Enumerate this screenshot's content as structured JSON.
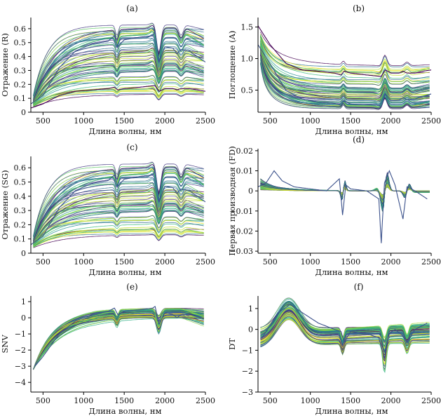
{
  "figure": {
    "palette": [
      "#440154",
      "#472c7a",
      "#3b518b",
      "#2c718e",
      "#21908d",
      "#27ad81",
      "#5cc863",
      "#aadc32",
      "#fde725",
      "#c2df23",
      "#86d549",
      "#35b779",
      "#31688e",
      "#443983"
    ]
  },
  "chart_data": [
    {
      "id": "a",
      "type": "line",
      "title": "(a)",
      "xlabel": "Длина волны, нм",
      "ylabel": "Отражение (R)",
      "xlim": [
        350,
        2500
      ],
      "ylim": [
        0,
        0.68
      ],
      "xticks": [
        500,
        1000,
        1500,
        2000,
        2500
      ],
      "yticks": [
        0,
        0.1,
        0.2,
        0.3,
        0.4,
        0.5,
        0.6
      ],
      "xtick_labels": [
        "500",
        "1000",
        "1500",
        "2000",
        "2500"
      ],
      "ytick_labels": [
        "0",
        "0.1",
        "0.2",
        "0.3",
        "0.4",
        "0.5",
        "0.6"
      ],
      "series_count": 70,
      "series": [
        {
          "x": [
            350,
            500,
            700,
            900,
            1100,
            1300,
            1380,
            1420,
            1500,
            1700,
            1850,
            1880,
            1930,
            2000,
            2100,
            2150,
            2200,
            2300,
            2400,
            2500
          ],
          "y": [
            0.06,
            0.12,
            0.32,
            0.44,
            0.49,
            0.51,
            0.55,
            0.47,
            0.52,
            0.54,
            0.55,
            0.58,
            0.36,
            0.47,
            0.46,
            0.42,
            0.45,
            0.44,
            0.4,
            0.36
          ]
        },
        {
          "x": [
            350,
            500,
            700,
            900,
            1100,
            1300,
            1380,
            1420,
            1500,
            1700,
            1850,
            1880,
            1930,
            2000,
            2100,
            2150,
            2200,
            2300,
            2400,
            2500
          ],
          "y": [
            0.03,
            0.06,
            0.12,
            0.15,
            0.16,
            0.17,
            0.18,
            0.16,
            0.17,
            0.18,
            0.19,
            0.19,
            0.15,
            0.17,
            0.17,
            0.16,
            0.17,
            0.17,
            0.16,
            0.15
          ]
        }
      ]
    },
    {
      "id": "b",
      "type": "line",
      "title": "(b)",
      "xlabel": "Длина волны, нм",
      "ylabel": "Поглощение (A)",
      "xlim": [
        350,
        2500
      ],
      "ylim": [
        0.15,
        1.65
      ],
      "xticks": [
        500,
        1000,
        1500,
        2000,
        2500
      ],
      "yticks": [
        0.5,
        1.0,
        1.5
      ],
      "xtick_labels": [
        "500",
        "1000",
        "1500",
        "2000",
        "2500"
      ],
      "ytick_labels": [
        "0.5",
        "1.0",
        "1.5"
      ],
      "series_count": 70,
      "series": [
        {
          "x": [
            350,
            500,
            700,
            900,
            1100,
            1300,
            1380,
            1420,
            1500,
            1700,
            1850,
            1880,
            1930,
            2000,
            2100,
            2150,
            2200,
            2300,
            2400,
            2500
          ],
          "y": [
            1.22,
            0.92,
            0.49,
            0.36,
            0.31,
            0.29,
            0.26,
            0.33,
            0.28,
            0.27,
            0.26,
            0.24,
            0.44,
            0.33,
            0.34,
            0.38,
            0.35,
            0.36,
            0.4,
            0.44
          ]
        },
        {
          "x": [
            350,
            500,
            700,
            900,
            1100,
            1300,
            1380,
            1420,
            1500,
            1700,
            1850,
            1880,
            1930,
            2000,
            2100,
            2150,
            2200,
            2300,
            2400,
            2500
          ],
          "y": [
            1.52,
            1.22,
            0.92,
            0.82,
            0.8,
            0.77,
            0.74,
            0.8,
            0.77,
            0.74,
            0.72,
            0.72,
            0.82,
            0.77,
            0.77,
            0.8,
            0.77,
            0.77,
            0.8,
            0.82
          ]
        }
      ]
    },
    {
      "id": "c",
      "type": "line",
      "title": "(c)",
      "xlabel": "Длина волны, нм",
      "ylabel": "Отражение (SG)",
      "xlim": [
        350,
        2500
      ],
      "ylim": [
        0,
        0.68
      ],
      "xticks": [
        500,
        1000,
        1500,
        2000,
        2500
      ],
      "yticks": [
        0,
        0.1,
        0.2,
        0.3,
        0.4,
        0.5,
        0.6
      ],
      "xtick_labels": [
        "500",
        "1000",
        "1500",
        "2000",
        "2500"
      ],
      "ytick_labels": [
        "0",
        "0.1",
        "0.2",
        "0.3",
        "0.4",
        "0.5",
        "0.6"
      ],
      "series_count": 70,
      "series": [
        {
          "x": [
            350,
            500,
            700,
            900,
            1100,
            1300,
            1380,
            1420,
            1500,
            1700,
            1850,
            1880,
            1930,
            2000,
            2100,
            2150,
            2200,
            2300,
            2400,
            2500
          ],
          "y": [
            0.06,
            0.12,
            0.32,
            0.44,
            0.49,
            0.51,
            0.55,
            0.47,
            0.52,
            0.54,
            0.55,
            0.58,
            0.36,
            0.47,
            0.46,
            0.42,
            0.45,
            0.44,
            0.4,
            0.36
          ]
        }
      ]
    },
    {
      "id": "d",
      "type": "line",
      "title": "(d)",
      "xlabel": "Длина волны, нм",
      "ylabel": "Первая производная (FD)",
      "xlim": [
        350,
        2500
      ],
      "ylim": [
        -0.031,
        0.021
      ],
      "xticks": [
        500,
        1000,
        1500,
        2000,
        2500
      ],
      "yticks": [
        -0.03,
        -0.02,
        -0.01,
        0,
        0.01,
        0.02
      ],
      "xtick_labels": [
        "500",
        "1000",
        "1500",
        "2000",
        "2500"
      ],
      "ytick_labels": [
        "−0.03",
        "−0.02",
        "−0.01",
        "0",
        "0.01",
        "0.02"
      ],
      "series_count": 70,
      "series": [
        {
          "x": [
            350,
            450,
            550,
            650,
            800,
            1000,
            1200,
            1360,
            1400,
            1440,
            1500,
            1700,
            1850,
            1880,
            1920,
            1980,
            2050,
            2150,
            2200,
            2300,
            2450
          ],
          "y": [
            0.002,
            0.004,
            0.01,
            0.005,
            0.002,
            0.001,
            0.0,
            0.006,
            -0.012,
            0.003,
            0.001,
            0.0,
            -0.004,
            -0.026,
            0.004,
            0.01,
            0.003,
            -0.014,
            0.002,
            0.0,
            -0.004
          ]
        }
      ]
    },
    {
      "id": "e",
      "type": "line",
      "title": "(e)",
      "xlabel": "Длина волны, нм",
      "ylabel": "SNV",
      "xlim": [
        350,
        2500
      ],
      "ylim": [
        -4.6,
        1.35
      ],
      "xticks": [
        500,
        1000,
        1500,
        2000,
        2500
      ],
      "yticks": [
        -4,
        -3,
        -2,
        -1,
        0,
        1
      ],
      "xtick_labels": [
        "500",
        "1000",
        "1500",
        "2000",
        "2500"
      ],
      "ytick_labels": [
        "−4",
        "−3",
        "−2",
        "−1",
        "0",
        "1"
      ],
      "series_count": 70,
      "series": [
        {
          "x": [
            400,
            500,
            700,
            900,
            1100,
            1300,
            1380,
            1420,
            1500,
            1700,
            1850,
            1880,
            1930,
            2000,
            2100,
            2150,
            2200,
            2300,
            2450
          ],
          "y": [
            -3.0,
            -2.4,
            -1.0,
            -0.2,
            0.2,
            0.4,
            0.6,
            0.2,
            0.4,
            0.5,
            0.6,
            0.7,
            -0.4,
            0.3,
            0.2,
            0.0,
            0.2,
            0.2,
            0.0
          ]
        }
      ]
    },
    {
      "id": "f",
      "type": "line",
      "title": "(f)",
      "xlabel": "Длина волны, нм",
      "ylabel": "DT",
      "xlim": [
        350,
        2500
      ],
      "ylim": [
        -3.0,
        1.6
      ],
      "xticks": [
        500,
        1000,
        1500,
        2000,
        2500
      ],
      "yticks": [
        -3,
        -2,
        -1,
        0,
        1
      ],
      "xtick_labels": [
        "500",
        "1000",
        "1500",
        "2000",
        "2500"
      ],
      "ytick_labels": [
        "−3",
        "−2",
        "−1",
        "0",
        "1"
      ],
      "series_count": 70,
      "series": [
        {
          "x": [
            400,
            500,
            600,
            750,
            900,
            1100,
            1300,
            1380,
            1420,
            1500,
            1700,
            1850,
            1920,
            1980,
            2050,
            2150,
            2200,
            2300,
            2450
          ],
          "y": [
            -0.4,
            0.2,
            0.8,
            1.2,
            0.8,
            0.3,
            0.0,
            -0.1,
            -0.6,
            -0.1,
            -0.2,
            -0.4,
            -1.4,
            -0.2,
            0.0,
            -0.3,
            -0.6,
            0.0,
            0.3
          ]
        }
      ]
    }
  ]
}
